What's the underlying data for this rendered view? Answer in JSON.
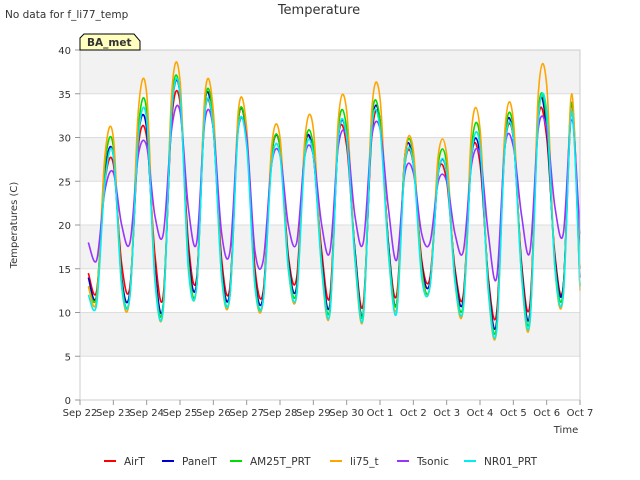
{
  "chart_data": {
    "type": "line",
    "title": "Temperature",
    "note": "No data for f_li77_temp",
    "badge": "BA_met",
    "xlabel": "Time",
    "ylabel": "Temperatures (C)",
    "ylim": [
      0,
      40
    ],
    "yticks": [
      0,
      5,
      10,
      15,
      20,
      25,
      30,
      35,
      40
    ],
    "xticks": [
      "Sep 22",
      "Sep 23",
      "Sep 24",
      "Sep 25",
      "Sep 26",
      "Sep 27",
      "Sep 28",
      "Sep 29",
      "Sep 30",
      "Oct 1",
      "Oct 2",
      "Oct 3",
      "Oct 4",
      "Oct 5",
      "Oct 6",
      "Oct 7"
    ],
    "grid": "horizontal bands",
    "legend_position": "bottom",
    "x_unit": "days since Sep 22 (sampled every 0.25 day)",
    "x": [
      0.25,
      0.5,
      0.75,
      1.0,
      1.25,
      1.5,
      1.75,
      2.0,
      2.25,
      2.5,
      2.75,
      3.0,
      3.25,
      3.5,
      3.75,
      4.0,
      4.25,
      4.5,
      4.75,
      5.0,
      5.25,
      5.5,
      5.75,
      6.0,
      6.25,
      6.5,
      6.75,
      7.0,
      7.25,
      7.5,
      7.75,
      8.0,
      8.25,
      8.5,
      8.75,
      9.0,
      9.25,
      9.5,
      9.75,
      10.0,
      10.25,
      10.5,
      10.75,
      11.0,
      11.25,
      11.5,
      11.75,
      12.0,
      12.25,
      12.5,
      12.75,
      13.0,
      13.25,
      13.5,
      13.75,
      14.0,
      14.25,
      14.5,
      14.75,
      15.0
    ],
    "series": [
      {
        "name": "AirT",
        "color": "#ff0000",
        "values": [
          14.5,
          12.5,
          25,
          27,
          15.5,
          13,
          29,
          30,
          16.5,
          12,
          32,
          34,
          18,
          14,
          33,
          31,
          16,
          13,
          32,
          30,
          15,
          12.5,
          28,
          29,
          16.5,
          14,
          29,
          28,
          17,
          12,
          30,
          29,
          17,
          11,
          30,
          32,
          18,
          12,
          27,
          27,
          16,
          14,
          26,
          25,
          15,
          12,
          28,
          27,
          14,
          10,
          29,
          30,
          15.5,
          11,
          32,
          30,
          16.5,
          13,
          33,
          15
        ]
      },
      {
        "name": "PanelT",
        "color": "#0000cc",
        "values": [
          14,
          12,
          26,
          28,
          14,
          12.5,
          30,
          31,
          15,
          11,
          33,
          35,
          17,
          13.5,
          34,
          31,
          15,
          12.5,
          32,
          30,
          14,
          12,
          28,
          29,
          16,
          13,
          29,
          28,
          16,
          11,
          30,
          30,
          17,
          10,
          31,
          32,
          18,
          11,
          28,
          27,
          15.5,
          13.5,
          26,
          26,
          14.5,
          11.5,
          28,
          28,
          13.5,
          9,
          30,
          30,
          15,
          10,
          33,
          31,
          16,
          13,
          34,
          14
        ]
      },
      {
        "name": "AM25T_PRT",
        "color": "#00dd00",
        "values": [
          13,
          12,
          27,
          29,
          13.5,
          12,
          31,
          33,
          14,
          11,
          34,
          35,
          16,
          13,
          34,
          32,
          14.5,
          12,
          32,
          30,
          13.5,
          11.5,
          28,
          29,
          15.5,
          12.5,
          29,
          29,
          15.5,
          10.5,
          31,
          31,
          16.5,
          10,
          32,
          32,
          17.5,
          11,
          28,
          28,
          15,
          13,
          27,
          27,
          14,
          11,
          29,
          30,
          13,
          8.5,
          30,
          31,
          14.5,
          9.5,
          33,
          32,
          15.5,
          12.5,
          34,
          13
        ]
      },
      {
        "name": "li75_t",
        "color": "#ffa500",
        "values": [
          13,
          11.5,
          28,
          30,
          13,
          12,
          33,
          35,
          14,
          10.5,
          35,
          36.5,
          15.5,
          13,
          35,
          33,
          14,
          12,
          33,
          31,
          13,
          11.5,
          29,
          30,
          15,
          12,
          30,
          31,
          15,
          10,
          32,
          33,
          16,
          9.5,
          33,
          34.5,
          17,
          10.5,
          28,
          28.5,
          14.5,
          13,
          28,
          28,
          13.5,
          10.5,
          31,
          31,
          12.5,
          8,
          31,
          32,
          14,
          9,
          35,
          36,
          15,
          12,
          35,
          12.5
        ]
      },
      {
        "name": "Tsonic",
        "color": "#9933ff",
        "values": [
          18,
          16,
          24,
          26,
          20,
          18,
          28,
          29,
          21,
          19,
          31,
          33,
          22,
          18,
          32,
          31,
          19,
          17,
          31,
          30,
          17,
          16,
          27,
          28,
          20,
          18,
          28,
          28,
          20,
          17,
          29,
          30,
          21,
          18,
          30,
          31,
          22,
          16,
          26,
          26,
          19,
          18,
          25,
          25,
          19,
          17,
          27,
          28,
          19,
          14,
          29,
          29,
          21,
          17,
          31,
          31,
          22,
          19,
          32,
          19
        ]
      },
      {
        "name": "NR01_PRT",
        "color": "#00eeee",
        "values": [
          12,
          11,
          25,
          28,
          13,
          12,
          30,
          32,
          13.5,
          10.5,
          33,
          35,
          15,
          13,
          33,
          31,
          14,
          12,
          31,
          29,
          13,
          11.5,
          27,
          28,
          15,
          12,
          28,
          28,
          15,
          10,
          30,
          30,
          16,
          9.5,
          31,
          31,
          17,
          10,
          27,
          27,
          14,
          13,
          26,
          26,
          13.5,
          10.5,
          28,
          29,
          12.5,
          8,
          29,
          30,
          14,
          9,
          32,
          33,
          15,
          12,
          33,
          13
        ]
      }
    ]
  }
}
